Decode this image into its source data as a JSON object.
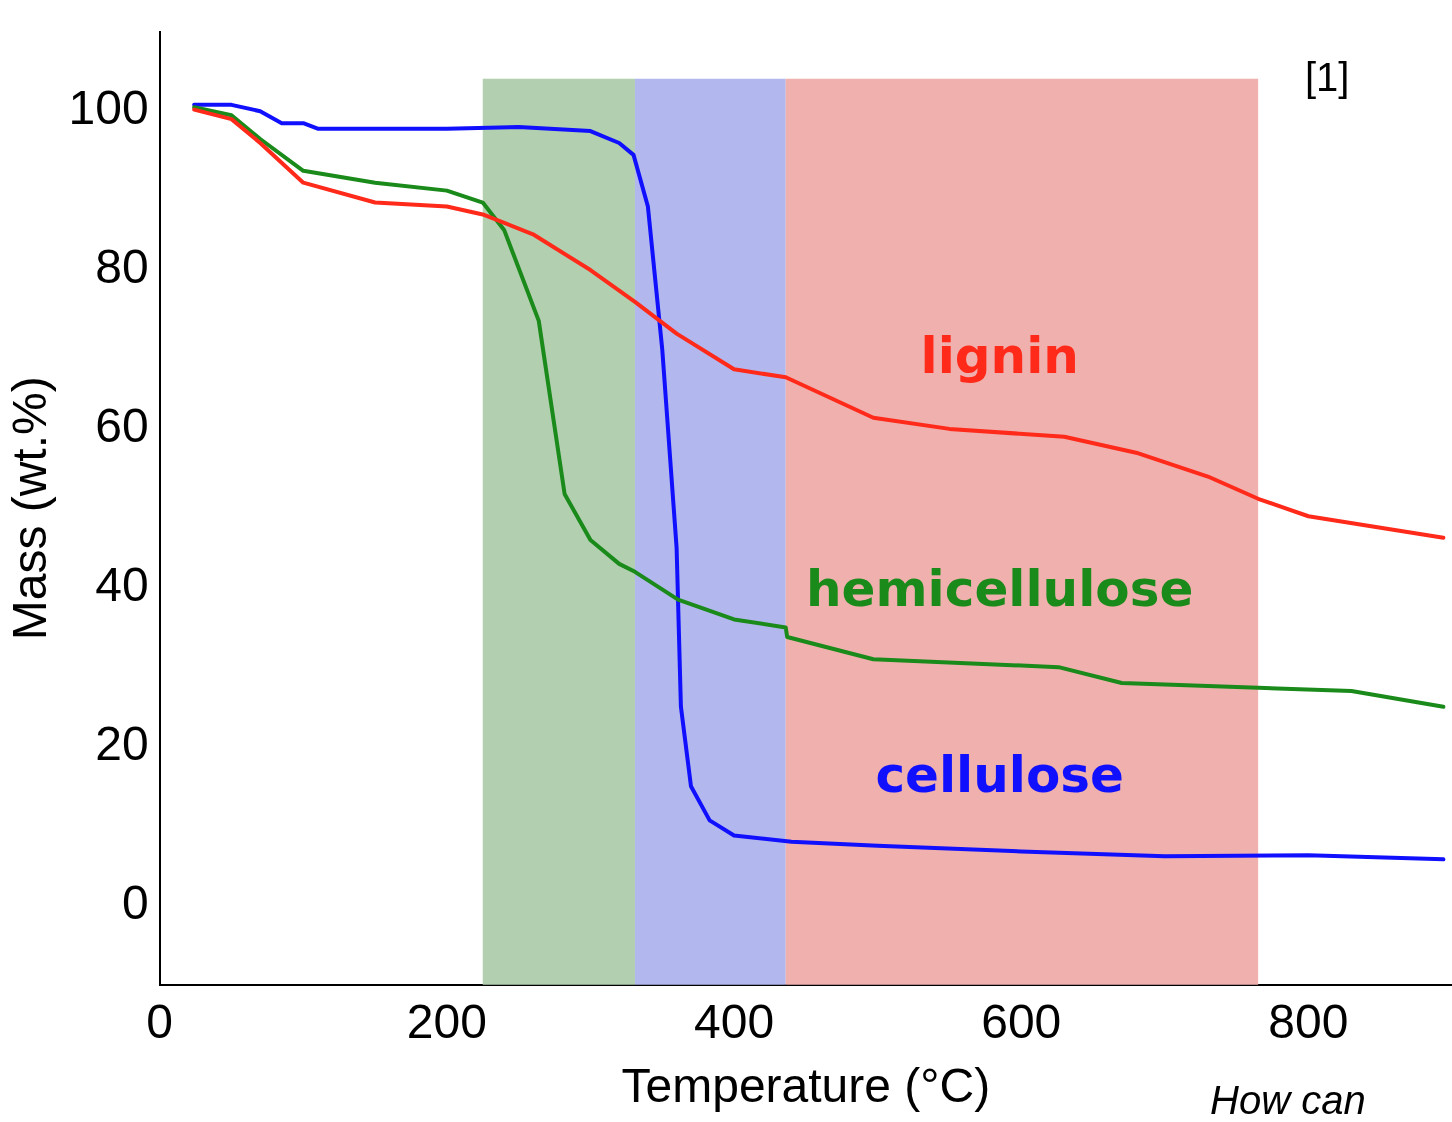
{
  "chart_data": {
    "type": "line",
    "xlabel": "Temperature (°C)",
    "ylabel": "Mass (wt.%)",
    "xlim": [
      0,
      900
    ],
    "ylim": [
      -10,
      110
    ],
    "xticks": [
      0,
      200,
      400,
      600,
      800
    ],
    "yticks": [
      0,
      20,
      40,
      60,
      80,
      100
    ],
    "grid": false,
    "legend": false,
    "marker": "none",
    "line_style": "solid",
    "bands": [
      {
        "axis": "x",
        "from": 225,
        "to": 331,
        "color": "#b2d0b0"
      },
      {
        "axis": "x",
        "from": 331,
        "to": 436,
        "color": "#b2b8ee"
      },
      {
        "axis": "x",
        "from": 436,
        "to": 765,
        "color": "#f0b0ae"
      }
    ],
    "series": [
      {
        "name": "lignin",
        "color": "#ff2a1a",
        "x": [
          24,
          50,
          70,
          100,
          150,
          200,
          225,
          260,
          300,
          331,
          360,
          400,
          436,
          497,
          550,
          630,
          680,
          730,
          765,
          800,
          894
        ],
        "values": [
          100.2,
          99,
          96,
          91,
          88.5,
          88,
          87,
          84.5,
          80,
          76,
          72,
          67.5,
          66.5,
          61.4,
          60,
          59,
          57,
          54,
          51.2,
          49,
          46.3
        ]
      },
      {
        "name": "hemicellulose",
        "color": "#1a8a1a",
        "x": [
          24,
          50,
          70,
          100,
          150,
          200,
          225,
          240,
          264,
          282,
          300,
          320,
          331,
          361,
          400,
          436,
          437,
          497,
          626,
          670,
          765,
          830,
          894
        ],
        "values": [
          100.5,
          99.5,
          96.5,
          92.5,
          91,
          90,
          88.5,
          85,
          73.6,
          51.8,
          46,
          43,
          42,
          38.5,
          36,
          35,
          33.8,
          31,
          30,
          28,
          27.4,
          27,
          25
        ]
      },
      {
        "name": "cellulose",
        "color": "#1010ff",
        "x": [
          24,
          50,
          70,
          85,
          100,
          110,
          200,
          250,
          300,
          320,
          330,
          340,
          350,
          360,
          363,
          370,
          383,
          400,
          440,
          500,
          600,
          700,
          800,
          894
        ],
        "values": [
          100.8,
          100.8,
          100,
          98.5,
          98.5,
          97.8,
          97.8,
          98,
          97.5,
          96,
          94.5,
          88,
          70,
          45,
          25,
          15,
          10.7,
          8.8,
          8,
          7.5,
          6.8,
          6.2,
          6.3,
          5.8
        ]
      }
    ],
    "annotations": [
      "[1]",
      "How can"
    ]
  }
}
